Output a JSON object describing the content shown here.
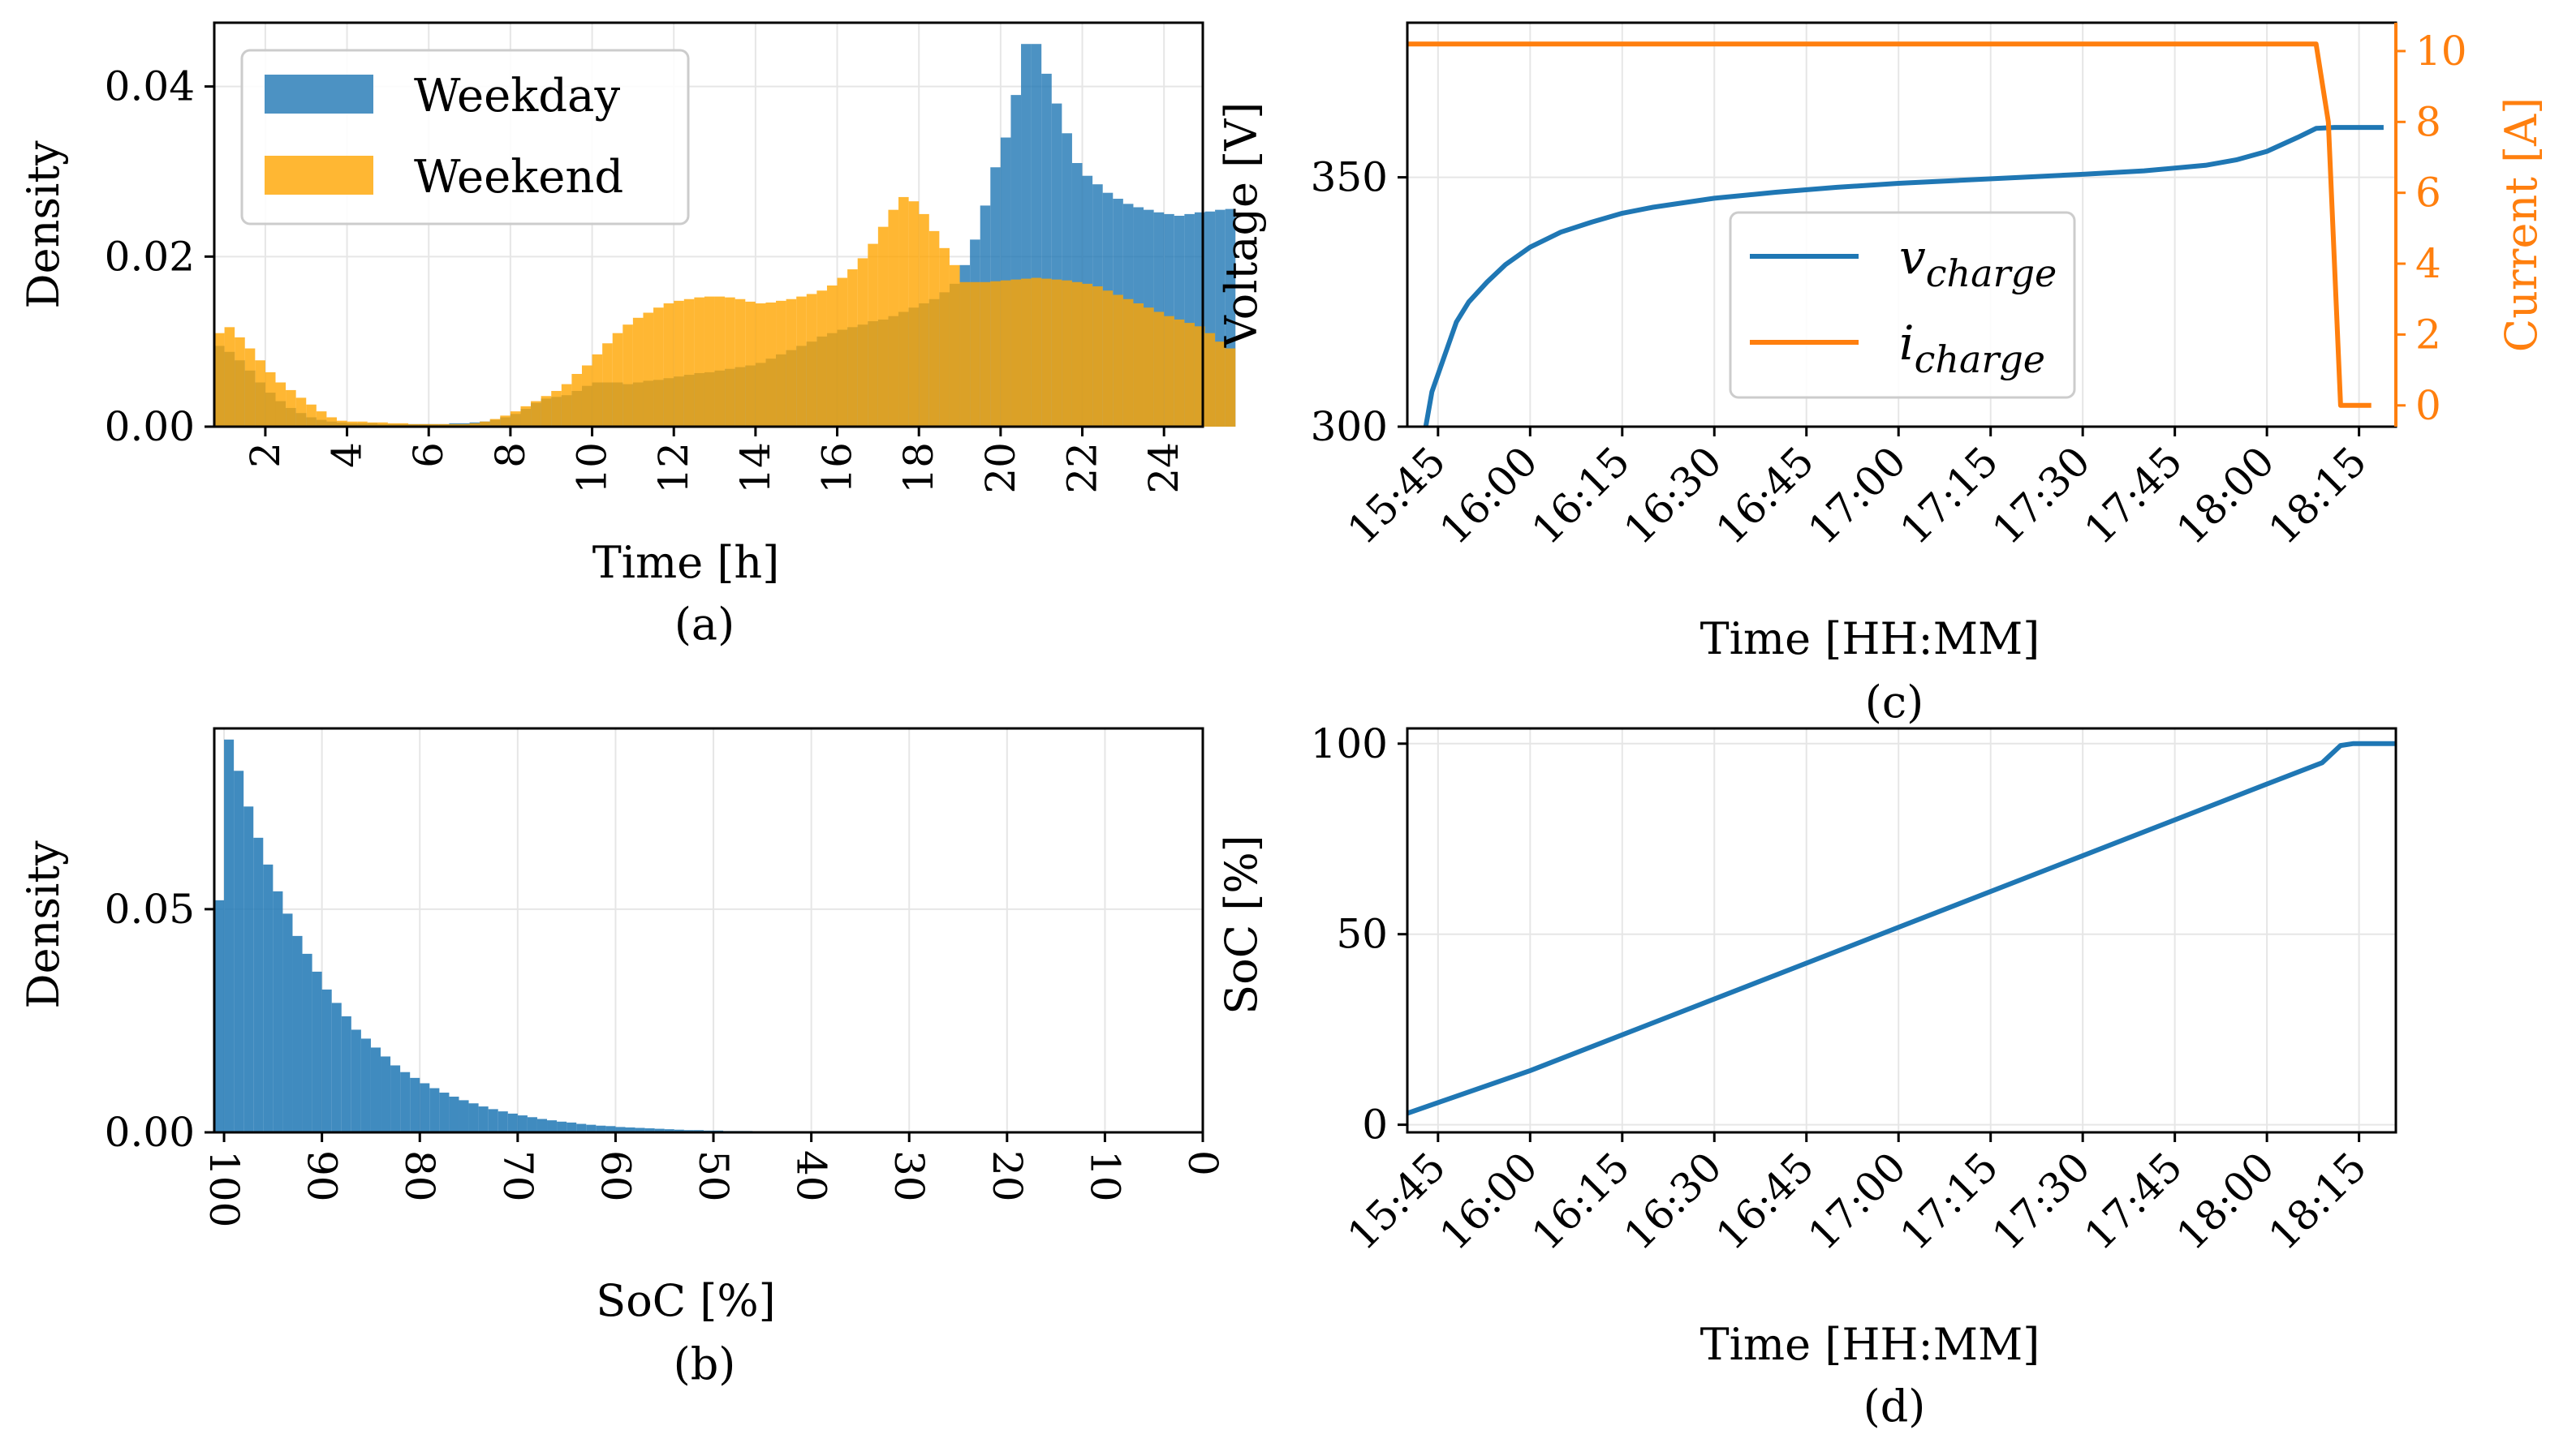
{
  "figure": {
    "panels": [
      {
        "caption": "(a)",
        "xlabel": "Time [h]",
        "ylabel": "Density",
        "legend": [
          "Weekday",
          "Weekend"
        ]
      },
      {
        "caption": "(b)",
        "xlabel": "SoC [%]",
        "ylabel": "Density"
      },
      {
        "caption": "(c)",
        "xlabel": "Time [HH:MM]",
        "ylabel": "Voltage [V]",
        "ylabel_right": "Current [A]",
        "legend_v_base": "v",
        "legend_v_sub": "charge",
        "legend_i_base": "i",
        "legend_i_sub": "charge"
      },
      {
        "caption": "(d)",
        "xlabel": "Time [HH:MM]",
        "ylabel": "SoC [%]"
      }
    ]
  },
  "chart_data": [
    {
      "type": "bar",
      "title": "",
      "xlabel": "Time [h]",
      "ylabel": "Density",
      "xlim": [
        0.75,
        24.95
      ],
      "ylim": [
        0,
        0.0475
      ],
      "xticks": [
        2,
        4,
        6,
        8,
        10,
        12,
        14,
        16,
        18,
        20,
        22,
        24
      ],
      "yticks": [
        0.0,
        0.02,
        0.04
      ],
      "ytick_labels": [
        "0.00",
        "0.02",
        "0.04"
      ],
      "grid": true,
      "legend_position": "top-left",
      "bin_start": 0.75,
      "bin_width": 0.25,
      "series": [
        {
          "name": "Weekday",
          "color": "#1f77b4",
          "values": [
            0.0095,
            0.0088,
            0.0078,
            0.0066,
            0.0052,
            0.004,
            0.003,
            0.0022,
            0.0016,
            0.0011,
            0.0008,
            0.0006,
            0.0005,
            0.0004,
            0.0004,
            0.0004,
            0.0003,
            0.0003,
            0.0003,
            0.0003,
            0.0003,
            0.0003,
            0.0003,
            0.0004,
            0.0004,
            0.0005,
            0.0006,
            0.0008,
            0.0011,
            0.0015,
            0.0021,
            0.0028,
            0.0033,
            0.0035,
            0.0037,
            0.0042,
            0.0048,
            0.0052,
            0.0052,
            0.0052,
            0.005,
            0.0052,
            0.0054,
            0.0055,
            0.0057,
            0.0059,
            0.0061,
            0.0063,
            0.0064,
            0.0066,
            0.0068,
            0.007,
            0.0072,
            0.0075,
            0.008,
            0.0085,
            0.009,
            0.0095,
            0.01,
            0.0106,
            0.011,
            0.0114,
            0.0117,
            0.012,
            0.0124,
            0.0126,
            0.013,
            0.0135,
            0.014,
            0.0145,
            0.015,
            0.0158,
            0.0168,
            0.019,
            0.022,
            0.026,
            0.0305,
            0.034,
            0.039,
            0.045,
            0.045,
            0.0415,
            0.038,
            0.0345,
            0.031,
            0.0295,
            0.0285,
            0.0275,
            0.0268,
            0.0262,
            0.0258,
            0.0255,
            0.0252,
            0.025,
            0.0248,
            0.025,
            0.0252,
            0.0253,
            0.0255,
            0.0256
          ]
        },
        {
          "name": "Weekend",
          "color": "#ffa500",
          "values": [
            0.011,
            0.0117,
            0.0105,
            0.0092,
            0.0078,
            0.0064,
            0.0052,
            0.0043,
            0.0034,
            0.0026,
            0.0018,
            0.0011,
            0.0007,
            0.0006,
            0.0006,
            0.0005,
            0.0005,
            0.0004,
            0.0004,
            0.0003,
            0.0003,
            0.0003,
            0.0003,
            0.0003,
            0.0003,
            0.0004,
            0.0006,
            0.0009,
            0.0013,
            0.0018,
            0.0024,
            0.003,
            0.0036,
            0.0042,
            0.005,
            0.0062,
            0.0072,
            0.0085,
            0.0098,
            0.011,
            0.012,
            0.0128,
            0.0134,
            0.014,
            0.0145,
            0.0148,
            0.015,
            0.0152,
            0.0153,
            0.0153,
            0.0152,
            0.015,
            0.0147,
            0.0145,
            0.0146,
            0.0148,
            0.015,
            0.0153,
            0.0156,
            0.016,
            0.0166,
            0.0175,
            0.0185,
            0.0198,
            0.0215,
            0.0235,
            0.0255,
            0.027,
            0.0265,
            0.025,
            0.023,
            0.021,
            0.019,
            0.017,
            0.017,
            0.017,
            0.0171,
            0.0172,
            0.0173,
            0.0174,
            0.0175,
            0.0174,
            0.0173,
            0.0172,
            0.017,
            0.0168,
            0.0165,
            0.016,
            0.0155,
            0.015,
            0.0145,
            0.014,
            0.0135,
            0.013,
            0.0126,
            0.0122,
            0.0118,
            0.011,
            0.01,
            0.0092
          ]
        }
      ]
    },
    {
      "type": "bar",
      "title": "",
      "xlabel": "SoC [%]",
      "ylabel": "Density",
      "xlim": [
        101,
        0
      ],
      "x_reversed": true,
      "ylim": [
        0,
        0.0905
      ],
      "xticks": [
        100,
        90,
        80,
        70,
        60,
        50,
        40,
        30,
        20,
        10,
        0
      ],
      "yticks": [
        0.0,
        0.05
      ],
      "ytick_labels": [
        "0.00",
        "0.05"
      ],
      "grid": true,
      "bin_start": 101,
      "bin_width": -1,
      "series": [
        {
          "name": "",
          "color": "#1f77b4",
          "values": [
            0.052,
            0.088,
            0.081,
            0.073,
            0.066,
            0.06,
            0.054,
            0.049,
            0.044,
            0.04,
            0.036,
            0.032,
            0.029,
            0.026,
            0.023,
            0.021,
            0.019,
            0.017,
            0.015,
            0.0135,
            0.0122,
            0.011,
            0.0099,
            0.0089,
            0.008,
            0.0072,
            0.0065,
            0.0058,
            0.0052,
            0.0047,
            0.0042,
            0.0038,
            0.0034,
            0.003,
            0.0027,
            0.0024,
            0.0022,
            0.0019,
            0.0017,
            0.0015,
            0.0014,
            0.0012,
            0.0011,
            0.001,
            0.0009,
            0.0008,
            0.0007,
            0.0006,
            0.0005,
            0.0005,
            0.0004,
            0.0004,
            0.0003,
            0.0003,
            0.0003,
            0.0002,
            0.0002,
            0.0002,
            0.0002,
            0.0001,
            0.0001,
            0.0001,
            0.0001,
            0.0001,
            0.0001,
            0.0001,
            0.0001,
            0.0001,
            0.0001
          ]
        }
      ]
    },
    {
      "type": "line",
      "title": "",
      "xlabel": "Time [HH:MM]",
      "ylabel": "Voltage [V]",
      "ylabel_right": "Current [A]",
      "xlim": [
        "15:40",
        "18:21"
      ],
      "xticks": [
        "15:45",
        "16:00",
        "16:15",
        "16:30",
        "16:45",
        "17:00",
        "17:15",
        "17:30",
        "17:45",
        "18:00",
        "18:15"
      ],
      "ylim": [
        300,
        381
      ],
      "yticks": [
        300,
        350
      ],
      "ylim_right": [
        -0.6,
        10.8
      ],
      "yticks_right": [
        0,
        2,
        4,
        6,
        8,
        10
      ],
      "grid": true,
      "legend_position": "center",
      "series": [
        {
          "name": "v_charge",
          "axis": "left",
          "color": "#1f77b4",
          "x": [
            "15:43",
            "15:44",
            "15:46",
            "15:48",
            "15:50",
            "15:53",
            "15:56",
            "16:00",
            "16:05",
            "16:10",
            "16:15",
            "16:20",
            "16:30",
            "16:40",
            "16:50",
            "17:00",
            "17:10",
            "17:20",
            "17:30",
            "17:40",
            "17:50",
            "17:55",
            "18:00",
            "18:05",
            "18:08",
            "18:11",
            "18:14",
            "18:16",
            "18:19"
          ],
          "y": [
            300,
            307,
            314,
            321,
            325,
            329,
            332.5,
            336,
            339,
            341,
            342.8,
            344,
            345.8,
            347,
            348,
            348.8,
            349.4,
            350,
            350.6,
            351.3,
            352.4,
            353.5,
            355.2,
            358,
            359.8,
            360,
            360,
            360,
            360
          ]
        },
        {
          "name": "i_charge",
          "axis": "right",
          "color": "#ff7f0e",
          "x": [
            "15:40",
            "16:00",
            "16:30",
            "17:00",
            "17:30",
            "18:00",
            "18:06",
            "18:08",
            "18:10",
            "18:12",
            "18:13",
            "18:15",
            "18:17"
          ],
          "y": [
            10.2,
            10.2,
            10.2,
            10.2,
            10.2,
            10.2,
            10.2,
            10.2,
            8,
            0,
            0,
            0,
            0
          ]
        }
      ]
    },
    {
      "type": "line",
      "title": "",
      "xlabel": "Time [HH:MM]",
      "ylabel": "SoC [%]",
      "xlim": [
        "15:40",
        "18:21"
      ],
      "xticks": [
        "15:45",
        "16:00",
        "16:15",
        "16:30",
        "16:45",
        "17:00",
        "17:15",
        "17:30",
        "17:45",
        "18:00",
        "18:15"
      ],
      "ylim": [
        -2,
        104
      ],
      "yticks": [
        0,
        50,
        100
      ],
      "grid": true,
      "series": [
        {
          "name": "",
          "color": "#1f77b4",
          "x": [
            "15:40",
            "16:00",
            "16:30",
            "17:00",
            "17:30",
            "18:00",
            "18:09",
            "18:12",
            "18:14",
            "18:16",
            "18:21"
          ],
          "y": [
            3,
            14.2,
            33,
            51.8,
            70.6,
            89.4,
            95,
            99.5,
            100,
            100,
            100
          ]
        }
      ]
    }
  ]
}
